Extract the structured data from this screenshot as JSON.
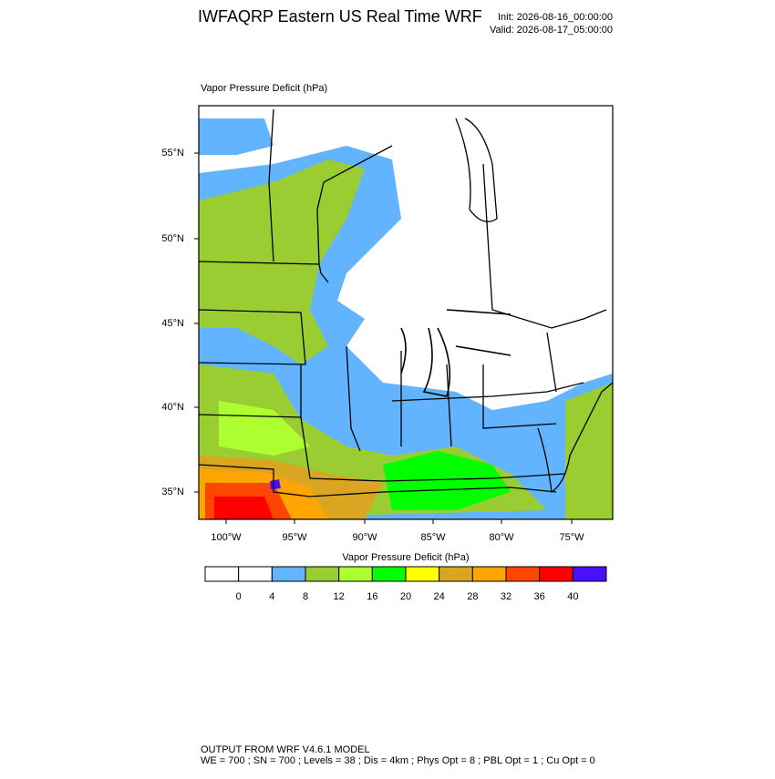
{
  "header": {
    "title": "IWFAQRP Eastern US Real Time WRF",
    "init": "Init: 2026-08-16_00:00:00",
    "valid": "Valid: 2026-08-17_05:00:00"
  },
  "map": {
    "label": "Vapor Pressure Deficit   (hPa)",
    "lat_labels": [
      "55°N",
      "50°N",
      "45°N",
      "40°N",
      "35°N"
    ],
    "lon_labels": [
      "100°W",
      "95°W",
      "90°W",
      "85°W",
      "80°W",
      "75°W"
    ]
  },
  "colorbar": {
    "title": "Vapor Pressure Deficit  (hPa)",
    "levels": [
      0,
      4,
      8,
      12,
      16,
      20,
      24,
      28,
      32,
      36,
      40
    ],
    "colors": [
      "#ffffff",
      "#ffffff",
      "#63b4ff",
      "#9acd32",
      "#adff2f",
      "#00ff00",
      "#ffff00",
      "#daa520",
      "#ffa500",
      "#ff4500",
      "#ff0000",
      "#4b0fff"
    ]
  },
  "footer": {
    "line1": "OUTPUT FROM WRF V4.6.1 MODEL",
    "line2": "WE = 700 ; SN = 700 ; Levels = 38 ; Dis = 4km ; Phys Opt = 8 ; PBL Opt = 1 ; Cu Opt = 0"
  }
}
